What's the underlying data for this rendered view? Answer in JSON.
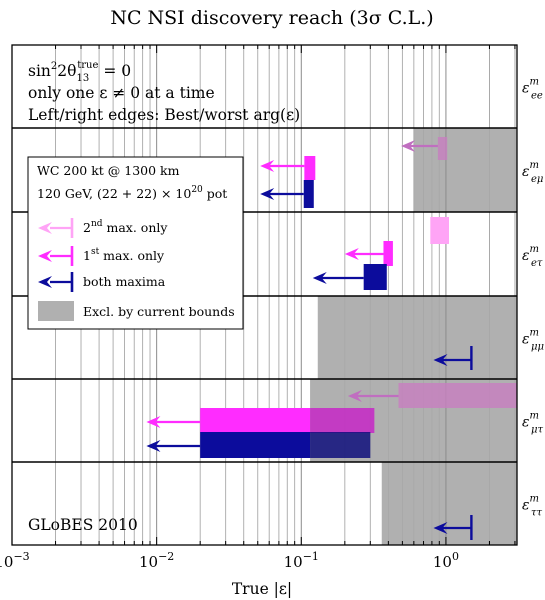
{
  "chart_data": {
    "type": "bar",
    "title": "NC NSI discovery reach (3σ C.L.)",
    "xlabel": "True |ε|",
    "xscale": "log",
    "xlim": [
      0.001,
      3.1
    ],
    "x_ticks": [
      {
        "value": 0.001,
        "base": "10",
        "exp": "−3"
      },
      {
        "value": 0.01,
        "base": "10",
        "exp": "−2"
      },
      {
        "value": 0.1,
        "base": "10",
        "exp": "−1"
      },
      {
        "value": 1,
        "base": "10",
        "exp": "0"
      }
    ],
    "grid": true,
    "rows": [
      {
        "id": "ee",
        "label": "ε",
        "sup": "m",
        "sub": "ee"
      },
      {
        "id": "emu",
        "label": "ε",
        "sup": "m",
        "sub": "eμ"
      },
      {
        "id": "etau",
        "label": "ε",
        "sup": "m",
        "sub": "eτ"
      },
      {
        "id": "mumu",
        "label": "ε",
        "sup": "m",
        "sub": "μμ"
      },
      {
        "id": "mutau",
        "label": "ε",
        "sup": "m",
        "sub": "μτ"
      },
      {
        "id": "tautau",
        "label": "ε",
        "sup": "m",
        "sub": "ττ"
      }
    ],
    "exclusions": [
      {
        "row": "emu",
        "from": 0.6,
        "to": 3.1
      },
      {
        "row": "mumu",
        "from": 0.13,
        "to": 3.1
      },
      {
        "row": "mutau",
        "from": 0.115,
        "to": 3.1
      },
      {
        "row": "tautau",
        "from": 0.36,
        "to": 3.1
      }
    ],
    "series": [
      {
        "name": "2nd max. only",
        "color": "#ffa4f6",
        "bars": [
          {
            "row": "emu",
            "from": 0.88,
            "to": 1.02,
            "arrow": 0.49
          },
          {
            "row": "etau",
            "from": 0.78,
            "to": 1.05
          },
          {
            "row": "mutau",
            "from": 0.47,
            "to": 3.1,
            "arrow": 0.21
          }
        ]
      },
      {
        "name": "1st max. only",
        "color": "#ff2cff",
        "bars": [
          {
            "row": "emu",
            "from": 0.105,
            "to": 0.125,
            "arrow": 0.052
          },
          {
            "row": "etau",
            "from": 0.37,
            "to": 0.43,
            "arrow": 0.2
          },
          {
            "row": "mutau",
            "from": 0.02,
            "to": 0.32,
            "arrow": 0.0085
          }
        ]
      },
      {
        "name": "both maxima",
        "color": "#0c0c9c",
        "bars": [
          {
            "row": "emu",
            "from": 0.104,
            "to": 0.122,
            "arrow": 0.052
          },
          {
            "row": "etau",
            "from": 0.27,
            "to": 0.39,
            "arrow": 0.12
          },
          {
            "row": "mumu",
            "from": 1.5,
            "to": 1.5,
            "arrow": 0.82
          },
          {
            "row": "mutau",
            "from": 0.02,
            "to": 0.3,
            "arrow": 0.0085
          },
          {
            "row": "tautau",
            "from": 1.5,
            "to": 1.5,
            "arrow": 0.82
          }
        ]
      }
    ],
    "exclusion_legend": "Excl. by current bounds",
    "exclusion_color": "#b0b0b0",
    "notes": [
      {
        "parts": [
          "sin",
          "2",
          "2θ",
          "13",
          "true",
          " = 0"
        ]
      },
      {
        "text": "only one ε ≠ 0 at a time"
      },
      {
        "text": "Left/right edges: Best/worst arg(ε)"
      }
    ],
    "legend_title": [
      "WC 200 kt @ 1300 km",
      {
        "parts": [
          "120 GeV, (22 + 22) × 10",
          "20",
          " pot"
        ]
      }
    ],
    "legend_labels": [
      {
        "parts": [
          "2",
          "nd",
          " max. only"
        ]
      },
      {
        "parts": [
          "1",
          "st",
          " max. only"
        ]
      },
      {
        "parts": [
          "both maxima"
        ]
      }
    ],
    "watermark": "GLoBES 2010"
  }
}
